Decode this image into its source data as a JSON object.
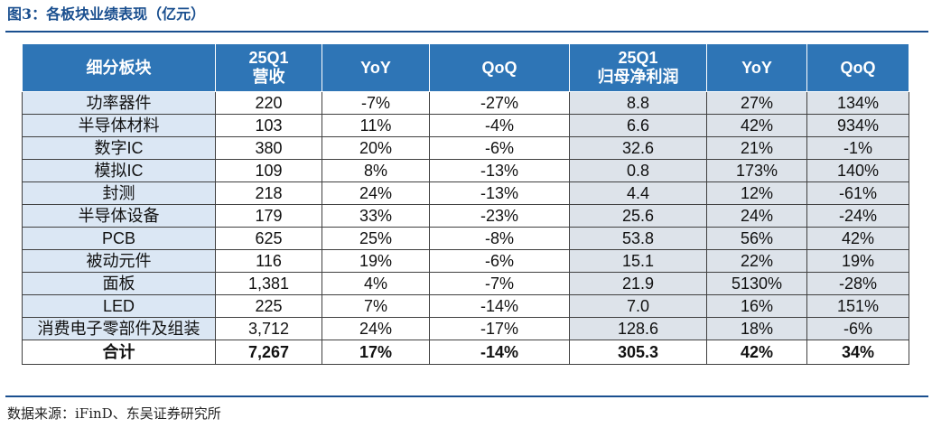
{
  "title": "图3：各板块业绩表现（亿元）",
  "table": {
    "headers": [
      {
        "line1": "细分板块",
        "line2": ""
      },
      {
        "line1": "25Q1",
        "line2": "营收"
      },
      {
        "line1": "YoY",
        "line2": ""
      },
      {
        "line1": "QoQ",
        "line2": ""
      },
      {
        "line1": "25Q1",
        "line2": "归母净利润"
      },
      {
        "line1": "YoY",
        "line2": ""
      },
      {
        "line1": "QoQ",
        "line2": ""
      }
    ],
    "rows": [
      [
        "功率器件",
        "220",
        "-7%",
        "-27%",
        "8.8",
        "27%",
        "134%"
      ],
      [
        "半导体材料",
        "103",
        "11%",
        "-4%",
        "6.6",
        "42%",
        "934%"
      ],
      [
        "数字IC",
        "380",
        "20%",
        "-6%",
        "32.6",
        "21%",
        "-1%"
      ],
      [
        "模拟IC",
        "109",
        "8%",
        "-13%",
        "0.8",
        "173%",
        "140%"
      ],
      [
        "封测",
        "218",
        "24%",
        "-13%",
        "4.4",
        "12%",
        "-61%"
      ],
      [
        "半导体设备",
        "179",
        "33%",
        "-23%",
        "25.6",
        "24%",
        "-24%"
      ],
      [
        "PCB",
        "625",
        "25%",
        "-8%",
        "53.8",
        "56%",
        "42%"
      ],
      [
        "被动元件",
        "116",
        "19%",
        "-6%",
        "15.1",
        "22%",
        "19%"
      ],
      [
        "面板",
        "1,381",
        "4%",
        "-7%",
        "21.9",
        "5130%",
        "-28%"
      ],
      [
        "LED",
        "225",
        "7%",
        "-14%",
        "7.0",
        "16%",
        "151%"
      ],
      [
        "消费电子零部件及组装",
        "3,712",
        "24%",
        "-17%",
        "128.6",
        "18%",
        "-6%"
      ]
    ],
    "total": [
      "合计",
      "7,267",
      "17%",
      "-14%",
      "305.3",
      "42%",
      "34%"
    ]
  },
  "source": "数据来源：iFinD、东吴证券研究所",
  "colors": {
    "title": "#1a4f8f",
    "header_bg": "#2e75b6",
    "segment_bg": "#dbe7f4",
    "profit_bg": "#dde3ea"
  }
}
